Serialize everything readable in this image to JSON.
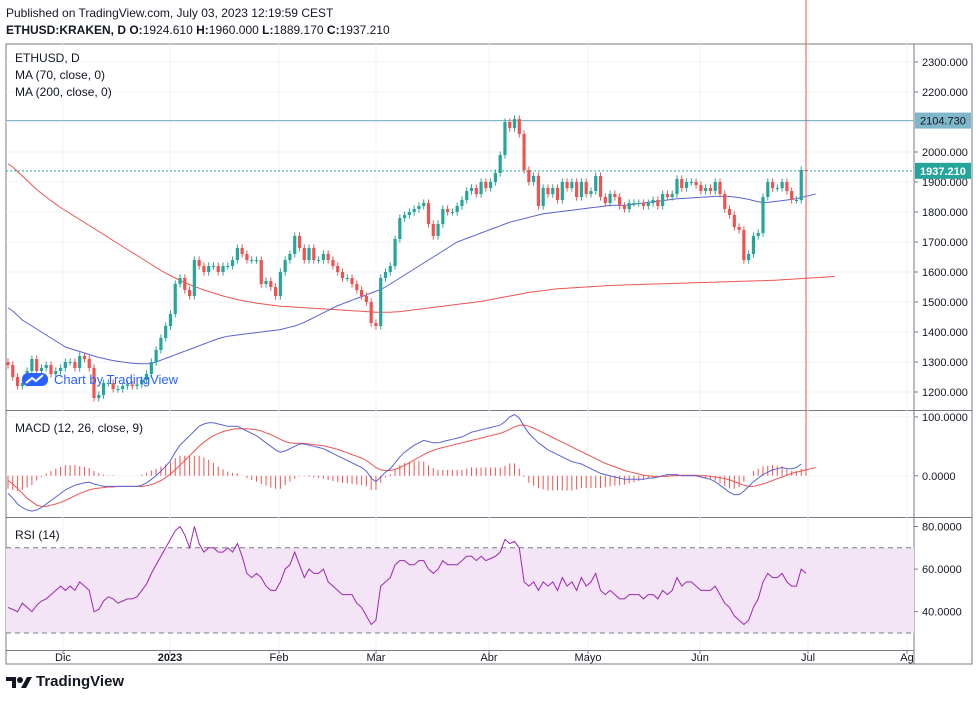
{
  "header": {
    "published": "Published on TradingView.com, July 03, 2023 12:19:59 CEST",
    "symbol": "ETHUSD:KRAKEN, D",
    "o_label": "O:",
    "o": "1924.610",
    "h_label": "H:",
    "h": "1960.000",
    "l_label": "L:",
    "l": "1889.170",
    "c_label": "C:",
    "c": "1937.210"
  },
  "price_pane": {
    "legend": [
      "ETHUSD, D",
      "MA (70, close, 0)",
      "MA (200, close, 0)"
    ],
    "yticks": [
      2300,
      2200,
      2100,
      2000,
      1900,
      1800,
      1700,
      1600,
      1500,
      1400,
      1300,
      1200
    ],
    "horizontal_line": "2104.730",
    "last_price": "1937.210"
  },
  "macd_pane": {
    "legend": "MACD (12, 26, close, 9)",
    "yticks": [
      "100.0000",
      "0.0000"
    ]
  },
  "rsi_pane": {
    "legend": "RSI (14)",
    "yticks": [
      "80.0000",
      "60.0000",
      "40.0000"
    ],
    "bands": [
      70,
      30
    ]
  },
  "xaxis": [
    "Dic",
    "2023",
    "Feb",
    "Mar",
    "Abr",
    "Mayo",
    "Jun",
    "Jul",
    "Ag"
  ],
  "watermark": "Chart by TradingView",
  "brand": "TradingView",
  "colors": {
    "up": "#26a69a",
    "down": "#ef5350",
    "ma70": "#5b63d3",
    "ma200": "#ef5350",
    "macd": "#5b63d3",
    "signal": "#ef5350",
    "rsi": "#9c27b0",
    "hline": "#7fb6c9"
  },
  "chart_data": [
    {
      "type": "candlestick",
      "title": "ETHUSD, D",
      "ylim": [
        1140,
        2360
      ],
      "closes": [
        1290,
        1250,
        1220,
        1230,
        1270,
        1310,
        1270,
        1280,
        1290,
        1260,
        1270,
        1280,
        1300,
        1300,
        1280,
        1320,
        1310,
        1280,
        1180,
        1190,
        1230,
        1230,
        1210,
        1210,
        1220,
        1225,
        1220,
        1225,
        1240,
        1260,
        1300,
        1340,
        1380,
        1420,
        1460,
        1560,
        1580,
        1540,
        1520,
        1640,
        1620,
        1600,
        1620,
        1620,
        1600,
        1620,
        1620,
        1640,
        1680,
        1660,
        1640,
        1640,
        1640,
        1560,
        1570,
        1550,
        1520,
        1600,
        1640,
        1660,
        1720,
        1680,
        1640,
        1680,
        1640,
        1640,
        1660,
        1640,
        1620,
        1600,
        1580,
        1580,
        1560,
        1540,
        1520,
        1500,
        1430,
        1420,
        1580,
        1600,
        1620,
        1710,
        1780,
        1790,
        1800,
        1810,
        1820,
        1830,
        1760,
        1720,
        1760,
        1810,
        1800,
        1800,
        1820,
        1840,
        1870,
        1880,
        1860,
        1900,
        1880,
        1900,
        1930,
        1990,
        2100,
        2080,
        2110,
        2060,
        1940,
        1900,
        1920,
        1820,
        1880,
        1860,
        1880,
        1840,
        1900,
        1880,
        1900,
        1850,
        1900,
        1860,
        1870,
        1920,
        1850,
        1830,
        1860,
        1850,
        1820,
        1810,
        1830,
        1830,
        1830,
        1820,
        1830,
        1840,
        1820,
        1860,
        1850,
        1860,
        1910,
        1880,
        1900,
        1900,
        1890,
        1870,
        1880,
        1870,
        1900,
        1860,
        1810,
        1790,
        1750,
        1740,
        1640,
        1660,
        1720,
        1730,
        1850,
        1900,
        1880,
        1880,
        1900,
        1870,
        1840,
        1840,
        1940,
        1937
      ],
      "ma70": [
        1480,
        1470,
        1455,
        1440,
        1430,
        1420,
        1410,
        1400,
        1390,
        1380,
        1370,
        1360,
        1350,
        1345,
        1340,
        1335,
        1330,
        1325,
        1320,
        1315,
        1312,
        1308,
        1305,
        1302,
        1300,
        1298,
        1296,
        1295,
        1294,
        1294,
        1295,
        1300,
        1306,
        1312,
        1318,
        1324,
        1330,
        1336,
        1342,
        1348,
        1354,
        1360,
        1366,
        1372,
        1378,
        1382,
        1386,
        1388,
        1390,
        1392,
        1394,
        1396,
        1398,
        1400,
        1402,
        1404,
        1406,
        1408,
        1412,
        1416,
        1420,
        1426,
        1432,
        1440,
        1448,
        1456,
        1464,
        1472,
        1480,
        1488,
        1494,
        1500,
        1506,
        1512,
        1518,
        1524,
        1530,
        1536,
        1542,
        1550,
        1560,
        1570,
        1580,
        1590,
        1600,
        1610,
        1620,
        1630,
        1640,
        1650,
        1660,
        1670,
        1680,
        1690,
        1700,
        1706,
        1712,
        1718,
        1724,
        1730,
        1736,
        1742,
        1748,
        1754,
        1760,
        1766,
        1770,
        1774,
        1778,
        1782,
        1786,
        1790,
        1794,
        1796,
        1798,
        1800,
        1802,
        1804,
        1806,
        1808,
        1810,
        1812,
        1814,
        1816,
        1818,
        1820,
        1822,
        1822,
        1822,
        1822,
        1824,
        1826,
        1828,
        1830,
        1832,
        1834,
        1836,
        1838,
        1840,
        1842,
        1844,
        1845,
        1846,
        1847,
        1848,
        1849,
        1850,
        1851,
        1852,
        1852,
        1852,
        1852,
        1850,
        1848,
        1845,
        1842,
        1838,
        1834,
        1832,
        1832,
        1834,
        1836,
        1838,
        1840,
        1842,
        1844,
        1848,
        1852,
        1856,
        1860
      ],
      "ma200": [
        1960,
        1950,
        1935,
        1920,
        1905,
        1890,
        1875,
        1862,
        1850,
        1838,
        1826,
        1815,
        1805,
        1795,
        1785,
        1775,
        1765,
        1755,
        1745,
        1735,
        1725,
        1715,
        1705,
        1695,
        1685,
        1675,
        1665,
        1655,
        1645,
        1635,
        1625,
        1615,
        1605,
        1596,
        1588,
        1580,
        1572,
        1565,
        1558,
        1552,
        1546,
        1540,
        1535,
        1530,
        1525,
        1520,
        1516,
        1512,
        1508,
        1505,
        1502,
        1499,
        1496,
        1494,
        1492,
        1490,
        1488,
        1486,
        1485,
        1484,
        1483,
        1482,
        1481,
        1480,
        1479,
        1478,
        1477,
        1476,
        1475,
        1474,
        1473,
        1472,
        1471,
        1470,
        1469,
        1468,
        1467,
        1466,
        1466,
        1466,
        1466,
        1467,
        1468,
        1470,
        1472,
        1474,
        1476,
        1478,
        1480,
        1482,
        1484,
        1486,
        1488,
        1490,
        1492,
        1494,
        1496,
        1498,
        1500,
        1502,
        1505,
        1508,
        1511,
        1514,
        1517,
        1520,
        1523,
        1526,
        1529,
        1532,
        1534,
        1536,
        1538,
        1540,
        1542,
        1544,
        1545,
        1546,
        1547,
        1548,
        1549,
        1550,
        1551,
        1552,
        1553,
        1554,
        1555,
        1556,
        1556,
        1557,
        1557,
        1558,
        1558,
        1559,
        1559,
        1560,
        1560,
        1561,
        1561,
        1562,
        1562,
        1563,
        1563,
        1564,
        1564,
        1565,
        1565,
        1566,
        1566,
        1567,
        1567,
        1568,
        1568,
        1569,
        1569,
        1570,
        1570,
        1571,
        1571,
        1572,
        1572,
        1573,
        1574,
        1575,
        1576,
        1577,
        1578,
        1579,
        1580,
        1581,
        1582,
        1583,
        1584,
        1585
      ]
    },
    {
      "type": "line",
      "title": "MACD (12, 26, close, 9)",
      "ylim": [
        -70,
        110
      ],
      "series": [
        {
          "name": "MACD",
          "values": [
            -30,
            -38,
            -48,
            -54,
            -58,
            -60,
            -58,
            -54,
            -48,
            -42,
            -36,
            -30,
            -24,
            -20,
            -16,
            -14,
            -12,
            -11,
            -14,
            -16,
            -18,
            -18,
            -18,
            -18,
            -18,
            -18,
            -18,
            -18,
            -16,
            -12,
            -6,
            0,
            8,
            16,
            26,
            40,
            52,
            60,
            68,
            76,
            84,
            88,
            90,
            90,
            88,
            86,
            84,
            84,
            84,
            80,
            76,
            72,
            68,
            62,
            56,
            50,
            44,
            40,
            42,
            46,
            50,
            54,
            54,
            52,
            50,
            48,
            46,
            42,
            38,
            34,
            30,
            26,
            22,
            18,
            14,
            8,
            -4,
            -10,
            -2,
            6,
            12,
            22,
            32,
            40,
            46,
            52,
            56,
            60,
            58,
            56,
            56,
            58,
            60,
            62,
            64,
            66,
            70,
            74,
            76,
            78,
            80,
            82,
            84,
            86,
            92,
            100,
            104,
            98,
            84,
            72,
            64,
            56,
            50,
            44,
            40,
            36,
            32,
            28,
            24,
            22,
            20,
            16,
            12,
            8,
            4,
            2,
            0,
            -2,
            -4,
            -6,
            -6,
            -6,
            -6,
            -6,
            -4,
            -4,
            -2,
            0,
            2,
            2,
            2,
            0,
            0,
            0,
            0,
            -2,
            -4,
            -6,
            -10,
            -16,
            -22,
            -28,
            -32,
            -32,
            -26,
            -18,
            -10,
            -4,
            2,
            6,
            10,
            12,
            14,
            12,
            12,
            14,
            20
          ]
        },
        {
          "name": "Signal",
          "values": [
            -8,
            -14,
            -22,
            -30,
            -38,
            -44,
            -50,
            -52,
            -52,
            -50,
            -48,
            -45,
            -42,
            -38,
            -34,
            -30,
            -27,
            -24,
            -22,
            -21,
            -20,
            -19,
            -19,
            -18,
            -18,
            -18,
            -18,
            -18,
            -18,
            -17,
            -15,
            -12,
            -8,
            -3,
            3,
            10,
            18,
            26,
            34,
            42,
            50,
            57,
            63,
            68,
            72,
            75,
            77,
            79,
            80,
            80,
            80,
            79,
            78,
            76,
            73,
            70,
            66,
            62,
            58,
            56,
            55,
            55,
            55,
            54,
            53,
            52,
            51,
            49,
            47,
            45,
            42,
            39,
            36,
            33,
            30,
            26,
            20,
            14,
            10,
            9,
            9,
            11,
            14,
            18,
            22,
            27,
            31,
            36,
            40,
            43,
            46,
            48,
            50,
            52,
            54,
            56,
            58,
            60,
            62,
            64,
            66,
            68,
            70,
            72,
            75,
            79,
            83,
            86,
            86,
            84,
            81,
            77,
            73,
            69,
            65,
            61,
            57,
            53,
            49,
            45,
            41,
            37,
            33,
            29,
            25,
            21,
            18,
            15,
            12,
            9,
            7,
            5,
            3,
            1,
            0,
            -1,
            -1,
            -1,
            -1,
            0,
            0,
            1,
            1,
            1,
            1,
            0,
            0,
            -1,
            -2,
            -3,
            -5,
            -7,
            -10,
            -13,
            -16,
            -18,
            -18,
            -16,
            -14,
            -11,
            -8,
            -5,
            -2,
            1,
            4,
            6,
            8,
            10,
            12,
            14
          ]
        }
      ]
    },
    {
      "type": "line",
      "title": "RSI (14)",
      "ylim": [
        22,
        84
      ],
      "series": [
        {
          "name": "RSI",
          "values": [
            42,
            41,
            40,
            44,
            42,
            40,
            43,
            45,
            46,
            48,
            50,
            52,
            50,
            52,
            50,
            54,
            52,
            50,
            40,
            41,
            45,
            47,
            46,
            44,
            45,
            46,
            46,
            47,
            50,
            53,
            58,
            62,
            66,
            70,
            74,
            78,
            80,
            76,
            70,
            80,
            72,
            68,
            70,
            70,
            68,
            68,
            70,
            68,
            72,
            66,
            58,
            56,
            58,
            56,
            52,
            50,
            50,
            54,
            60,
            62,
            68,
            62,
            56,
            60,
            58,
            58,
            60,
            54,
            52,
            50,
            48,
            48,
            48,
            44,
            42,
            38,
            34,
            36,
            52,
            54,
            56,
            62,
            64,
            64,
            62,
            62,
            64,
            64,
            60,
            58,
            60,
            64,
            62,
            62,
            62,
            64,
            66,
            66,
            64,
            66,
            64,
            65,
            66,
            68,
            74,
            72,
            73,
            70,
            54,
            52,
            54,
            50,
            54,
            52,
            54,
            50,
            56,
            52,
            54,
            50,
            56,
            52,
            54,
            58,
            50,
            48,
            50,
            48,
            46,
            46,
            48,
            48,
            48,
            46,
            48,
            48,
            46,
            50,
            48,
            50,
            56,
            52,
            54,
            54,
            52,
            50,
            50,
            50,
            52,
            48,
            44,
            42,
            38,
            36,
            34,
            36,
            42,
            46,
            54,
            58,
            56,
            56,
            58,
            54,
            52,
            52,
            60,
            58
          ]
        }
      ],
      "bands": [
        70,
        30
      ]
    }
  ]
}
